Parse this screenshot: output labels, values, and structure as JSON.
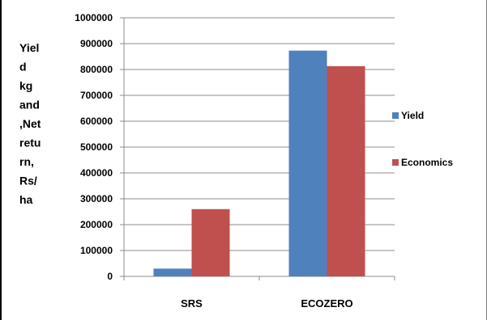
{
  "chart_data": {
    "type": "bar",
    "categories": [
      "SRS",
      "ECOZERO"
    ],
    "series": [
      {
        "name": "Yield",
        "values": [
          30000,
          873000
        ],
        "color": "#4f81bd"
      },
      {
        "name": "Economics",
        "values": [
          260000,
          813000
        ],
        "color": "#c0504d"
      }
    ],
    "ylabel_lines": [
      "Yiel",
      "d",
      "kg",
      "and",
      ",Net",
      "retu",
      "rn,",
      "Rs/",
      "ha"
    ],
    "ylim": [
      0,
      1000000
    ],
    "yticks": [
      0,
      100000,
      200000,
      300000,
      400000,
      500000,
      600000,
      700000,
      800000,
      900000,
      1000000
    ],
    "ytick_labels": [
      "0",
      "100000",
      "200000",
      "300000",
      "400000",
      "500000",
      "600000",
      "700000",
      "800000",
      "900000",
      "1000000"
    ],
    "grid": true,
    "legend_position": "right"
  }
}
